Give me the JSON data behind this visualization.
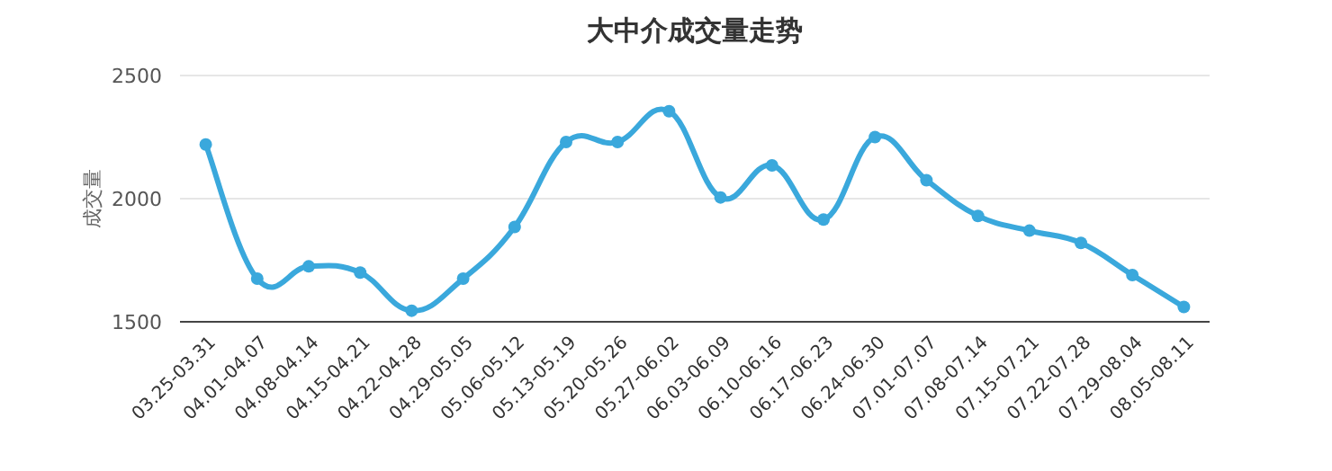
{
  "chart_data": {
    "type": "line",
    "title": "大中介成交量走势",
    "ylabel": "成交量",
    "categories": [
      "03.25-03.31",
      "04.01-04.07",
      "04.08-04.14",
      "04.15-04.21",
      "04.22-04.28",
      "04.29-05.05",
      "05.06-05.12",
      "05.13-05.19",
      "05.20-05.26",
      "05.27-06.02",
      "06.03-06.09",
      "06.10-06.16",
      "06.17-06.23",
      "06.24-06.30",
      "07.01-07.07",
      "07.08-07.14",
      "07.15-07.21",
      "07.22-07.28",
      "07.29-08.04",
      "08.05-08.11"
    ],
    "series": [
      {
        "color": "#3aa8dc",
        "values": [
          2220,
          1675,
          1725,
          1700,
          1545,
          1675,
          1885,
          2230,
          2230,
          2355,
          2005,
          2135,
          1915,
          2250,
          2075,
          1930,
          1870,
          1820,
          1690,
          1560
        ]
      }
    ],
    "ylim": [
      1500,
      2500
    ],
    "yticks": [
      1500,
      2000,
      2500
    ],
    "grid": "y",
    "marker": "circle",
    "line_style": "solid"
  }
}
